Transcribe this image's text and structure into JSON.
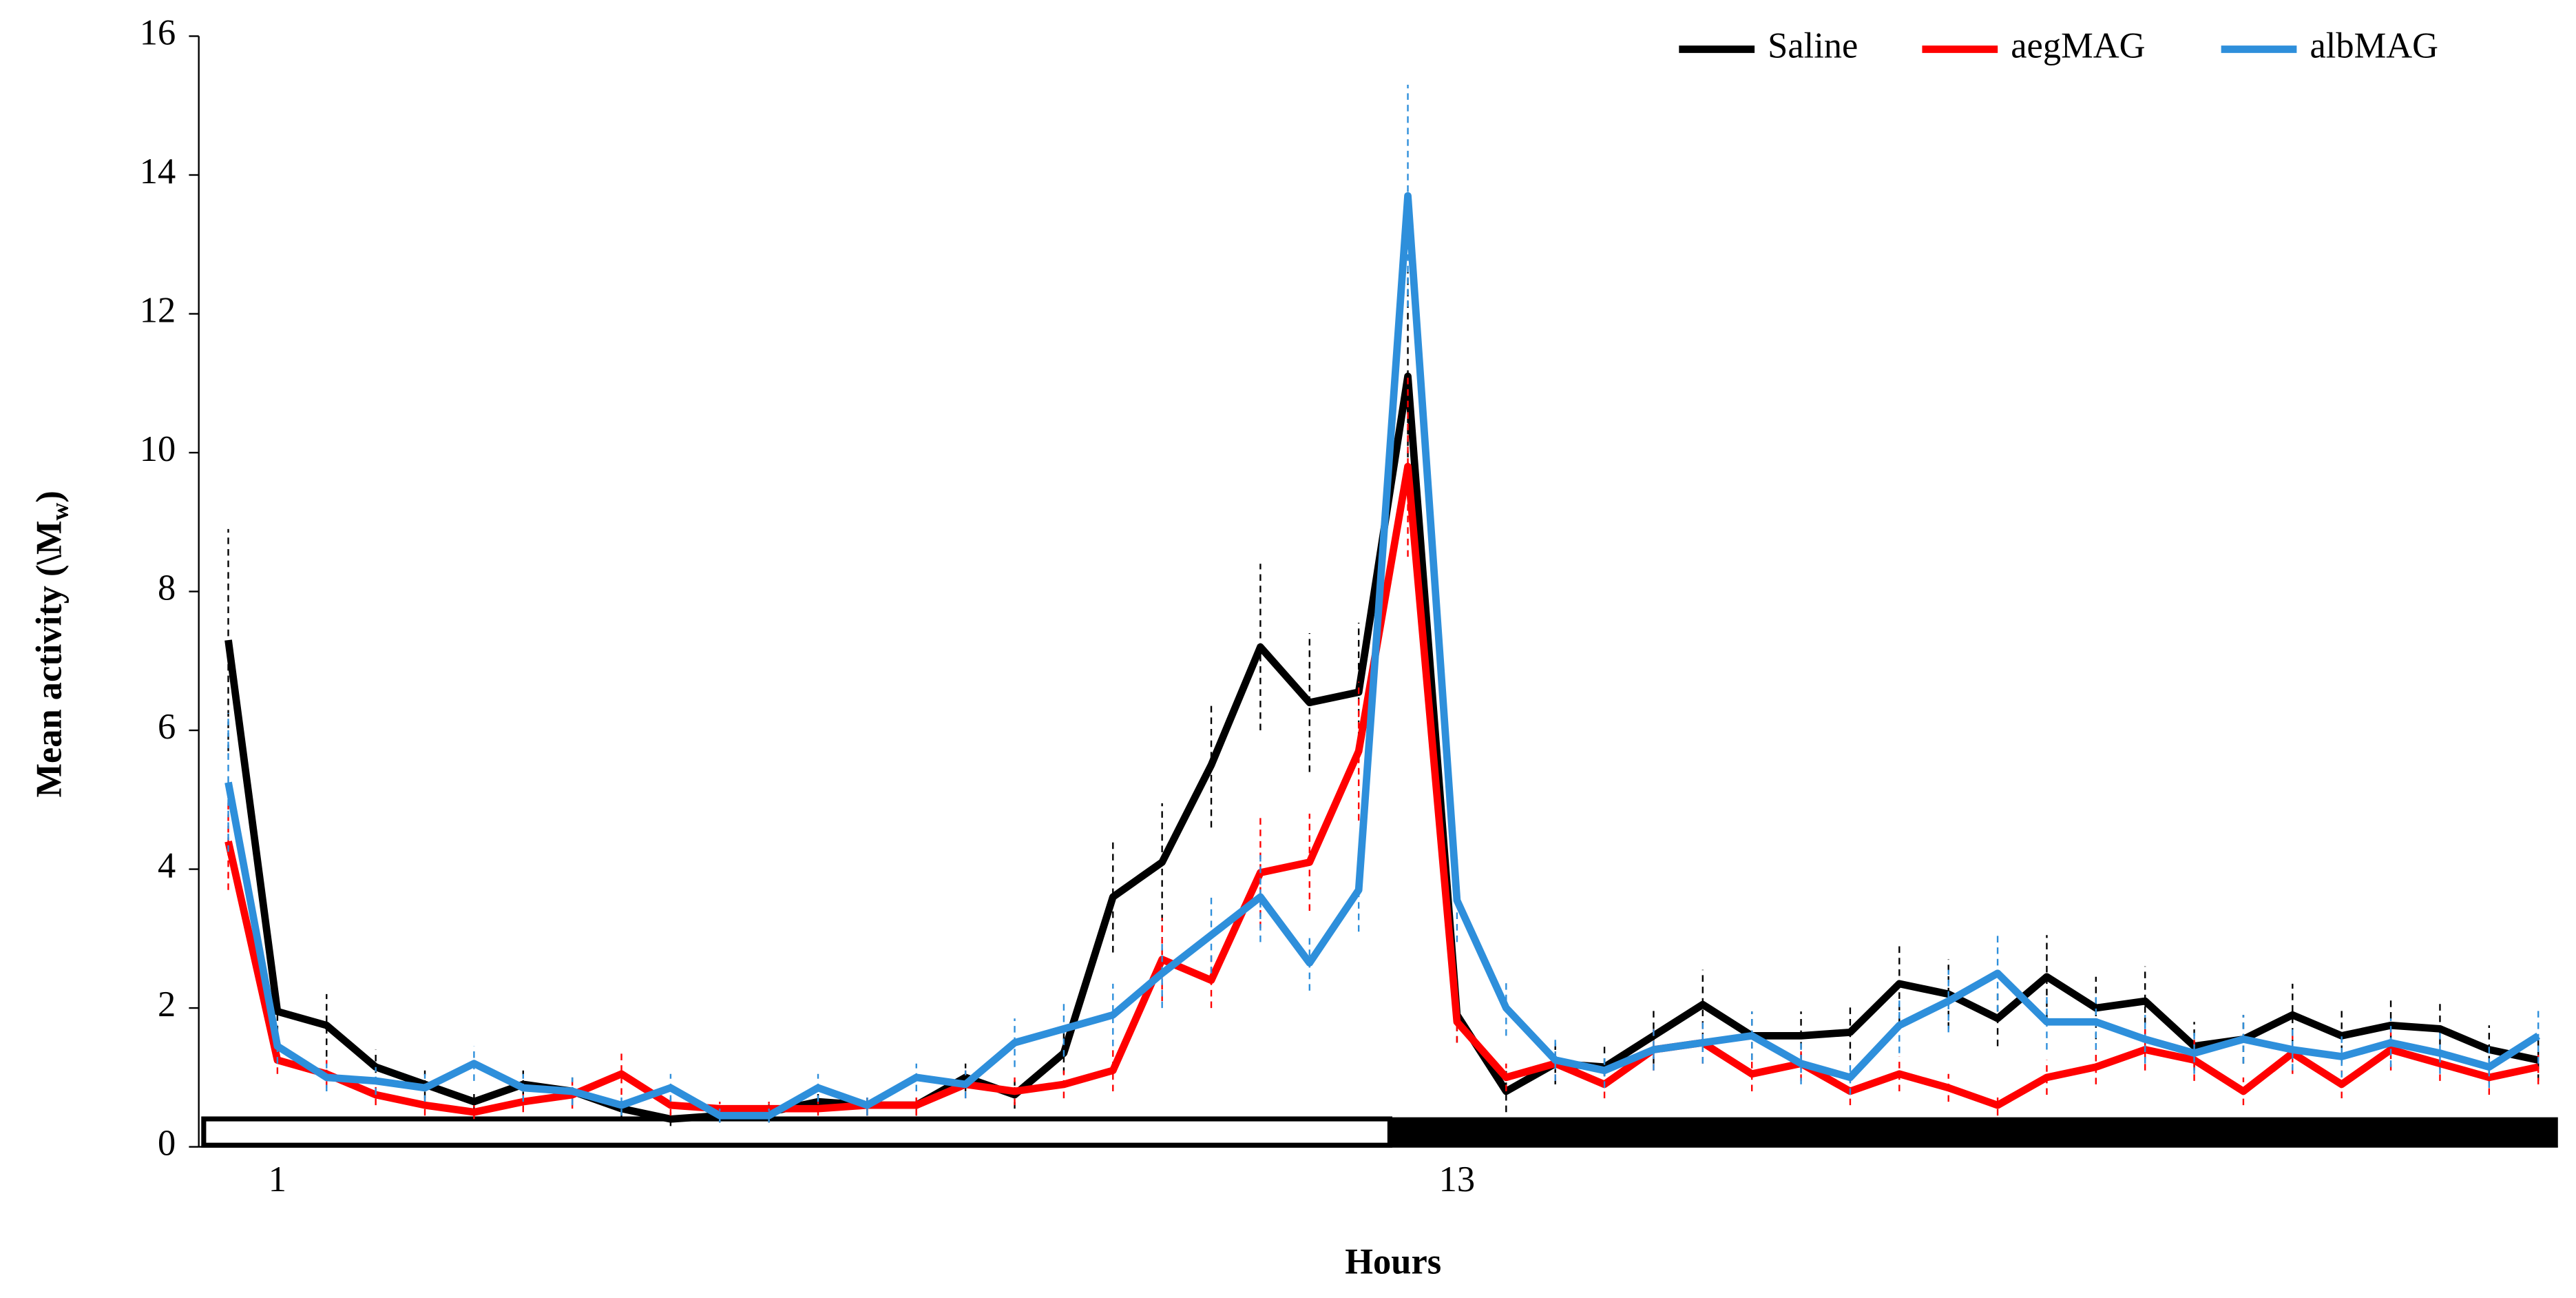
{
  "chart_data": {
    "type": "line",
    "x_label": "Hours",
    "y_label": "Mean activity (\\M",
    "y_label_sub": "w",
    "y_label_end": ")",
    "x": [
      0.5,
      1,
      1.5,
      2,
      2.5,
      3,
      3.5,
      4,
      4.5,
      5,
      5.5,
      6,
      6.5,
      7,
      7.5,
      8,
      8.5,
      9,
      9.5,
      10,
      10.5,
      11,
      11.5,
      12,
      12.5,
      13,
      13.5,
      14,
      14.5,
      15,
      15.5,
      16,
      16.5,
      17,
      17.5,
      18,
      18.5,
      19,
      19.5,
      20,
      20.5,
      21,
      21.5,
      22,
      22.5,
      23,
      23.5,
      24
    ],
    "xlim": [
      0.2,
      24.2
    ],
    "xticks": [
      1,
      13
    ],
    "ylim": [
      0,
      16
    ],
    "yticks": [
      0,
      2,
      4,
      6,
      8,
      10,
      12,
      14,
      16
    ],
    "grid": false,
    "legend": "top-right",
    "series": [
      {
        "name": "Saline",
        "color": "#000000",
        "values": [
          7.3,
          1.95,
          1.75,
          1.15,
          0.9,
          0.65,
          0.9,
          0.8,
          0.55,
          0.4,
          0.45,
          0.5,
          0.65,
          0.6,
          0.6,
          1.0,
          0.75,
          1.35,
          3.6,
          4.1,
          5.5,
          7.2,
          6.4,
          6.55,
          11.1,
          1.9,
          0.8,
          1.2,
          1.15,
          1.6,
          2.05,
          1.6,
          1.6,
          1.65,
          2.35,
          2.2,
          1.85,
          2.45,
          2.0,
          2.1,
          1.45,
          1.55,
          1.9,
          1.6,
          1.75,
          1.7,
          1.4,
          1.25
        ],
        "errors": [
          1.6,
          0.3,
          0.45,
          0.25,
          0.2,
          0.15,
          0.2,
          0.2,
          0.15,
          0.1,
          0.1,
          0.15,
          0.15,
          0.15,
          0.15,
          0.2,
          0.2,
          0.3,
          0.8,
          0.85,
          0.9,
          1.2,
          1.0,
          1.0,
          1.5,
          0.4,
          0.3,
          0.3,
          0.3,
          0.4,
          0.5,
          0.35,
          0.35,
          0.4,
          0.55,
          0.5,
          0.4,
          0.6,
          0.45,
          0.5,
          0.35,
          0.35,
          0.45,
          0.4,
          0.4,
          0.4,
          0.35,
          0.3
        ]
      },
      {
        "name": "aegMAG",
        "color": "#ff0000",
        "values": [
          4.4,
          1.25,
          1.05,
          0.75,
          0.6,
          0.5,
          0.65,
          0.75,
          1.05,
          0.6,
          0.55,
          0.55,
          0.55,
          0.6,
          0.6,
          0.9,
          0.8,
          0.9,
          1.1,
          2.7,
          2.4,
          3.95,
          4.1,
          5.7,
          9.8,
          1.8,
          1.0,
          1.2,
          0.9,
          1.4,
          1.5,
          1.05,
          1.2,
          0.8,
          1.05,
          0.85,
          0.6,
          1.0,
          1.15,
          1.4,
          1.25,
          0.8,
          1.35,
          0.9,
          1.4,
          1.2,
          1.0,
          1.15
        ],
        "errors": [
          0.7,
          0.2,
          0.2,
          0.15,
          0.15,
          0.1,
          0.15,
          0.2,
          0.3,
          0.15,
          0.1,
          0.1,
          0.1,
          0.15,
          0.15,
          0.2,
          0.2,
          0.2,
          0.3,
          0.6,
          0.4,
          0.8,
          0.7,
          1.0,
          1.3,
          0.3,
          0.2,
          0.25,
          0.2,
          0.3,
          0.3,
          0.25,
          0.25,
          0.2,
          0.25,
          0.2,
          0.15,
          0.25,
          0.25,
          0.3,
          0.3,
          0.2,
          0.3,
          0.2,
          0.3,
          0.25,
          0.25,
          0.25
        ]
      },
      {
        "name": "albMAG",
        "color": "#2e8fdb",
        "values": [
          5.25,
          1.45,
          1.0,
          0.95,
          0.85,
          1.2,
          0.85,
          0.8,
          0.6,
          0.85,
          0.45,
          0.45,
          0.85,
          0.6,
          1.0,
          0.9,
          1.5,
          1.7,
          1.9,
          2.5,
          3.05,
          3.6,
          2.65,
          3.7,
          13.7,
          3.55,
          2.0,
          1.25,
          1.1,
          1.4,
          1.5,
          1.6,
          1.2,
          1.0,
          1.75,
          2.1,
          2.5,
          1.8,
          1.8,
          1.55,
          1.35,
          1.55,
          1.4,
          1.3,
          1.5,
          1.35,
          1.15,
          1.6
        ],
        "errors": [
          1.0,
          0.25,
          0.2,
          0.2,
          0.2,
          0.25,
          0.2,
          0.2,
          0.15,
          0.2,
          0.1,
          0.1,
          0.2,
          0.15,
          0.2,
          0.2,
          0.35,
          0.4,
          0.45,
          0.5,
          0.55,
          0.65,
          0.4,
          0.6,
          1.6,
          0.6,
          0.4,
          0.3,
          0.25,
          0.3,
          0.3,
          0.35,
          0.3,
          0.25,
          0.4,
          0.45,
          0.55,
          0.4,
          0.4,
          0.35,
          0.3,
          0.35,
          0.3,
          0.3,
          0.35,
          0.3,
          0.3,
          0.4
        ]
      }
    ]
  }
}
